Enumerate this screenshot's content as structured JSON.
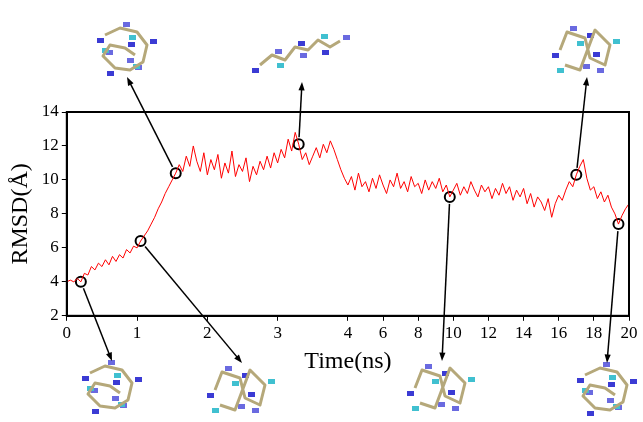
{
  "chart_data": {
    "type": "line",
    "x_label": "Time(ns)",
    "y_label": "RMSD(Å)",
    "xlim": [
      0,
      20
    ],
    "xticks": [
      0,
      1,
      2,
      3,
      4,
      6,
      8,
      10,
      12,
      14,
      16,
      18,
      20
    ],
    "ylim": [
      2,
      14
    ],
    "yticks": [
      2,
      4,
      6,
      8,
      10,
      12,
      14
    ],
    "grid": false,
    "series": [
      {
        "color": "#ff0000",
        "line_style": "solid",
        "x": [
          0,
          0.05,
          0.1,
          0.15,
          0.2,
          0.25,
          0.3,
          0.35,
          0.4,
          0.45,
          0.5,
          0.55,
          0.6,
          0.65,
          0.7,
          0.75,
          0.8,
          0.85,
          0.9,
          0.95,
          1,
          1.05,
          1.1,
          1.15,
          1.2,
          1.25,
          1.3,
          1.35,
          1.4,
          1.45,
          1.5,
          1.55,
          1.6,
          1.65,
          1.7,
          1.75,
          1.8,
          1.85,
          1.9,
          1.95,
          2,
          2.05,
          2.1,
          2.15,
          2.2,
          2.25,
          2.3,
          2.35,
          2.4,
          2.45,
          2.5,
          2.55,
          2.6,
          2.65,
          2.7,
          2.75,
          2.8,
          2.85,
          2.9,
          2.95,
          3,
          3.05,
          3.1,
          3.15,
          3.2,
          3.25,
          3.3,
          3.35,
          3.4,
          3.45,
          3.5,
          3.55,
          3.6,
          3.65,
          3.7,
          3.75,
          3.8,
          3.85,
          3.9,
          3.95,
          4,
          4.2,
          4.4,
          4.6,
          4.8,
          5,
          5.2,
          5.4,
          5.6,
          5.8,
          6,
          6.2,
          6.4,
          6.6,
          6.8,
          7,
          7.2,
          7.4,
          7.6,
          7.8,
          8,
          8.2,
          8.4,
          8.6,
          8.8,
          9,
          9.2,
          9.4,
          9.6,
          9.8,
          10,
          10.2,
          10.4,
          10.6,
          10.8,
          11,
          11.2,
          11.4,
          11.6,
          11.8,
          12,
          12.2,
          12.4,
          12.6,
          12.8,
          13,
          13.2,
          13.4,
          13.6,
          13.8,
          14,
          14.2,
          14.4,
          14.6,
          14.8,
          15,
          15.2,
          15.4,
          15.6,
          15.8,
          16,
          16.2,
          16.4,
          16.6,
          16.8,
          17,
          17.2,
          17.4,
          17.6,
          17.8,
          18,
          18.2,
          18.4,
          18.6,
          18.8,
          19,
          19.2,
          19.4,
          19.6,
          19.8,
          20
        ],
        "values": [
          4.0,
          4.1,
          4.0,
          4.2,
          4.0,
          4.5,
          4.4,
          4.9,
          4.7,
          5.1,
          4.9,
          5.3,
          5.0,
          5.5,
          5.2,
          5.6,
          5.4,
          5.9,
          5.7,
          6.1,
          6.0,
          6.4,
          6.7,
          7.0,
          7.4,
          7.8,
          8.3,
          8.7,
          9.2,
          9.6,
          10.0,
          10.4,
          10.9,
          10.5,
          11.4,
          10.8,
          12.0,
          11.1,
          10.5,
          11.6,
          10.3,
          11.2,
          10.6,
          11.5,
          10.1,
          11.0,
          10.4,
          11.7,
          10.2,
          10.9,
          10.5,
          11.3,
          9.9,
          10.8,
          10.3,
          11.1,
          10.6,
          11.4,
          10.7,
          11.6,
          11.0,
          11.8,
          11.3,
          12.4,
          11.7,
          12.8,
          12.1,
          11.2,
          11.6,
          10.9,
          11.4,
          11.9,
          11.3,
          12.1,
          11.6,
          12.3,
          11.8,
          11.2,
          10.6,
          10.1,
          9.7,
          10.2,
          9.4,
          10.4,
          9.6,
          9.9,
          9.3,
          10.1,
          9.5,
          10.3,
          9.7,
          9.2,
          10.0,
          9.6,
          10.4,
          9.5,
          9.9,
          9.3,
          10.2,
          9.6,
          9.8,
          9.2,
          10.0,
          9.4,
          9.9,
          9.5,
          10.1,
          9.3,
          9.7,
          9.0,
          9.4,
          9.8,
          9.1,
          9.6,
          9.2,
          9.9,
          9.4,
          9.0,
          9.7,
          9.3,
          9.6,
          8.9,
          9.5,
          9.1,
          9.8,
          9.2,
          9.6,
          8.8,
          9.4,
          9.0,
          9.5,
          8.6,
          9.2,
          8.4,
          9.0,
          8.7,
          8.2,
          8.9,
          7.8,
          8.6,
          9.1,
          8.8,
          9.4,
          9.9,
          9.6,
          10.3,
          10.8,
          11.2,
          10.1,
          9.4,
          9.6,
          8.9,
          9.3,
          8.7,
          9.1,
          8.4,
          8.0,
          7.4,
          7.9,
          8.3,
          8.6
        ]
      },
      {
        "color": "#000000",
        "marker": "circle",
        "line_style": "none",
        "x": [
          0.2,
          1.05,
          1.55,
          3.3,
          9.8,
          17,
          19.4
        ],
        "values": [
          4.0,
          6.4,
          10.4,
          12.1,
          9.0,
          10.3,
          7.4
        ]
      }
    ]
  }
}
